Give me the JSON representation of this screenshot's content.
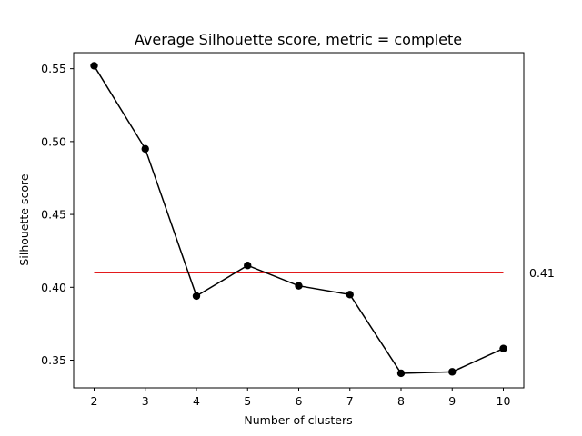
{
  "chart_data": {
    "type": "line",
    "title": "Average Silhouette score, metric = complete",
    "xlabel": "Number of clusters",
    "ylabel": "Silhouette score",
    "x": [
      2,
      3,
      4,
      5,
      6,
      7,
      8,
      9,
      10
    ],
    "xlim": [
      1.6,
      10.4
    ],
    "ylim": [
      0.331,
      0.561
    ],
    "xticks": [
      2,
      3,
      4,
      5,
      6,
      7,
      8,
      9,
      10
    ],
    "yticks": [
      0.35,
      0.4,
      0.45,
      0.5,
      0.55
    ],
    "ytick_labels": [
      "0.35",
      "0.40",
      "0.45",
      "0.50",
      "0.55"
    ],
    "grid": false,
    "series": [
      {
        "values": [
          0.552,
          0.495,
          0.394,
          0.415,
          0.401,
          0.395,
          0.341,
          0.342,
          0.358
        ],
        "color": "#000000",
        "marker": "circle"
      }
    ],
    "reference_line": {
      "y": 0.41,
      "x_range": [
        2,
        10
      ],
      "color": "#e31a1c",
      "label": "0.41"
    }
  }
}
